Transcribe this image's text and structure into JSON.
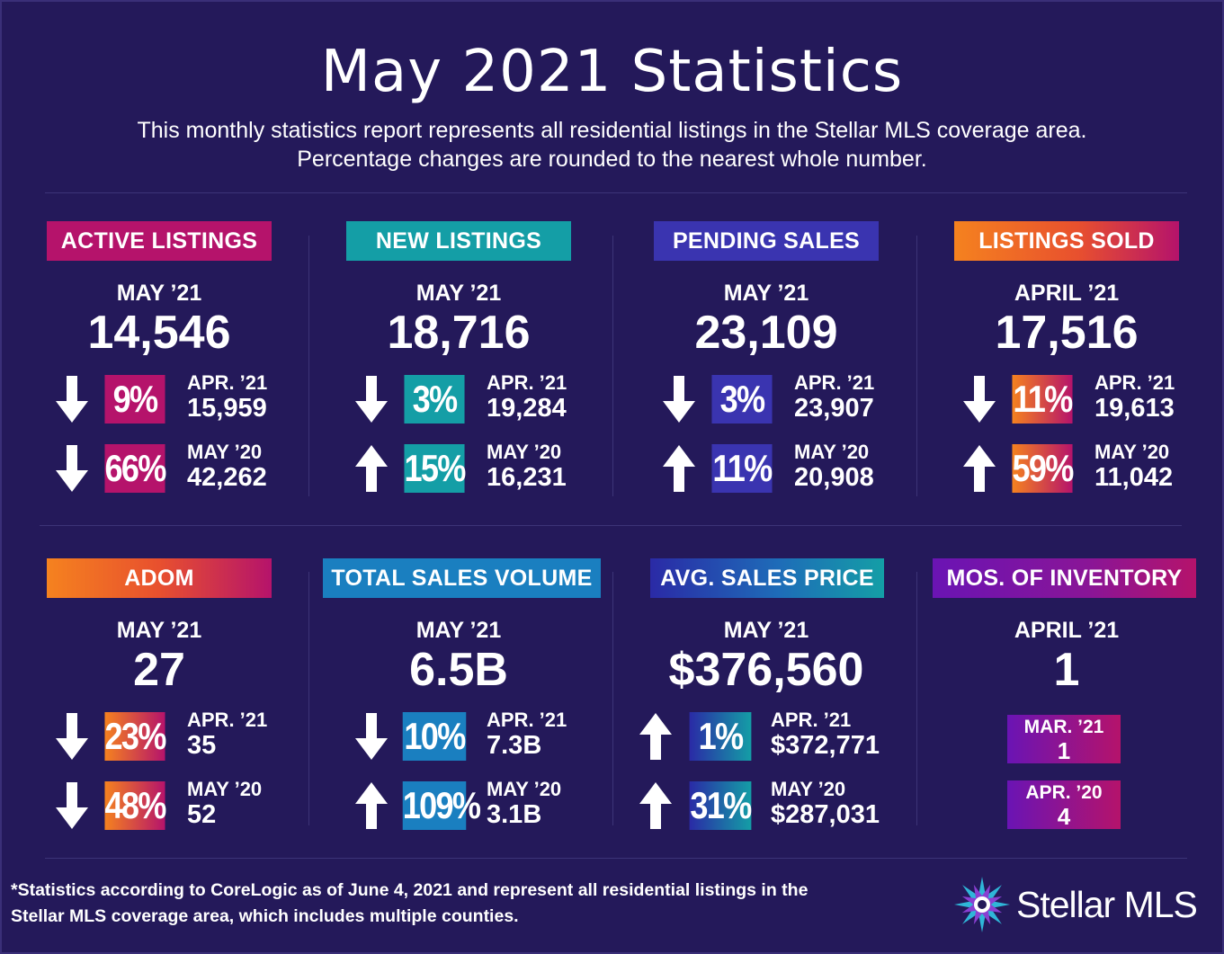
{
  "header": {
    "title": "May 2021 Statistics",
    "subtitle_line1": "This monthly statistics report represents all residential listings in the Stellar MLS coverage area.",
    "subtitle_line2": "Percentage changes are rounded to the nearest whole number."
  },
  "colors": {
    "background": "#24195a",
    "magenta": "#b5136b",
    "teal": "#149ea6",
    "indigo": "#3a34b0",
    "orange": "#f5821f",
    "blue": "#1a7fc0",
    "purple": "#6a14b4"
  },
  "cards": {
    "active": {
      "label": "ACTIVE LISTINGS",
      "period": "MAY ’21",
      "value": "14,546",
      "c1": {
        "direction": "down",
        "percent": "9%",
        "label": "APR. ’21",
        "value": "15,959"
      },
      "c2": {
        "direction": "down",
        "percent": "66%",
        "label": "MAY ’20",
        "value": "42,262"
      }
    },
    "new": {
      "label": "NEW LISTINGS",
      "period": "MAY ’21",
      "value": "18,716",
      "c1": {
        "direction": "down",
        "percent": "3%",
        "label": "APR. ’21",
        "value": "19,284"
      },
      "c2": {
        "direction": "up",
        "percent": "15%",
        "label": "MAY ’20",
        "value": "16,231"
      }
    },
    "pending": {
      "label": "PENDING SALES",
      "period": "MAY ’21",
      "value": "23,109",
      "c1": {
        "direction": "down",
        "percent": "3%",
        "label": "APR. ’21",
        "value": "23,907"
      },
      "c2": {
        "direction": "up",
        "percent": "11%",
        "label": "MAY ’20",
        "value": "20,908"
      }
    },
    "sold": {
      "label": "LISTINGS SOLD",
      "period": "APRIL ’21",
      "value": "17,516",
      "c1": {
        "direction": "down",
        "percent": "11%",
        "label": "APR. ’21",
        "value": "19,613"
      },
      "c2": {
        "direction": "up",
        "percent": "59%",
        "label": "MAY ’20",
        "value": "11,042"
      }
    },
    "adom": {
      "label": "ADOM",
      "period": "MAY ’21",
      "value": "27",
      "c1": {
        "direction": "down",
        "percent": "23%",
        "label": "APR. ’21",
        "value": "35"
      },
      "c2": {
        "direction": "down",
        "percent": "48%",
        "label": "MAY ’20",
        "value": "52"
      }
    },
    "volume": {
      "label": "TOTAL SALES VOLUME",
      "period": "MAY ’21",
      "value": "6.5B",
      "c1": {
        "direction": "down",
        "percent": "10%",
        "label": "APR. ’21",
        "value": "7.3B"
      },
      "c2": {
        "direction": "up",
        "percent": "109%",
        "label": "MAY ’20",
        "value": "3.1B"
      }
    },
    "price": {
      "label": "AVG. SALES PRICE",
      "period": "MAY ’21",
      "value": "$376,560",
      "c1": {
        "direction": "up",
        "percent": "1%",
        "label": "APR. ’21",
        "value": "$372,771"
      },
      "c2": {
        "direction": "up",
        "percent": "31%",
        "label": "MAY ’20",
        "value": "$287,031"
      }
    },
    "inventory": {
      "label": "MOS. OF INVENTORY",
      "period": "APRIL ’21",
      "value": "1",
      "m1": {
        "label": "MAR. ’21",
        "value": "1"
      },
      "m2": {
        "label": "APR. ’20",
        "value": "4"
      }
    }
  },
  "footer": {
    "note_line1": "*Statistics according to CoreLogic as of June 4, 2021 and represent all residential listings in the",
    "note_line2": "Stellar MLS coverage area, which includes multiple counties.",
    "logo_text": "Stellar MLS"
  }
}
